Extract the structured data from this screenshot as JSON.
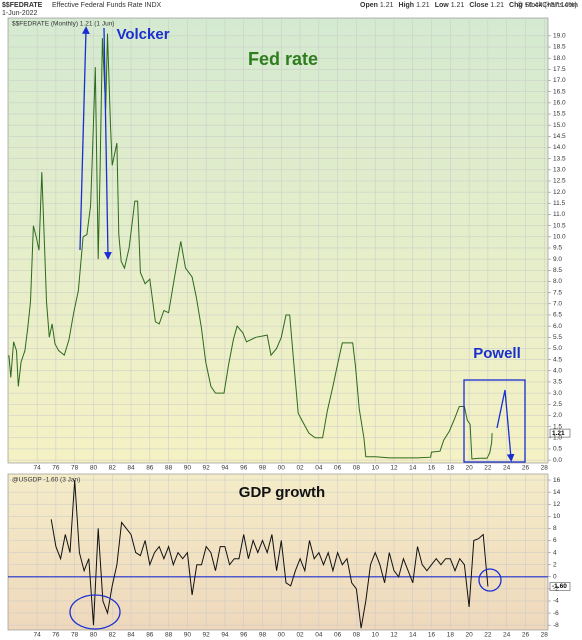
{
  "header": {
    "symbol": "$$FEDRATE",
    "name": "Effective Federal Funds Rate INDX",
    "date": "1-Jun-2022",
    "quote": [
      {
        "label": "Open",
        "value": "1.21"
      },
      {
        "label": "High",
        "value": "1.21"
      },
      {
        "label": "Low",
        "value": "1.21"
      },
      {
        "label": "Close",
        "value": "1.21"
      },
      {
        "label": "Chg",
        "value": "+0.44 (+57.14%)"
      }
    ],
    "credit": "© StockCharts.com"
  },
  "chart_data": [
    {
      "type": "line",
      "label": "$$FEDRATE (Monthly) 1.21 (1 Jun)",
      "title": "Fed rate",
      "annotations": [
        "Volcker",
        "Powell"
      ],
      "color": "#2d6a1f",
      "grid": true,
      "x": [
        1971.0,
        1971.2,
        1971.5,
        1971.8,
        1972.0,
        1972.3,
        1972.7,
        1973.0,
        1973.3,
        1973.6,
        1973.9,
        1974.2,
        1974.5,
        1974.8,
        1975.0,
        1975.3,
        1975.6,
        1975.9,
        1976.3,
        1976.9,
        1977.4,
        1977.9,
        1978.4,
        1978.9,
        1979.3,
        1979.7,
        1979.9,
        1980.2,
        1980.5,
        1980.7,
        1980.95,
        1981.3,
        1981.5,
        1981.8,
        1982.0,
        1982.5,
        1982.7,
        1982.95,
        1983.3,
        1983.8,
        1984.4,
        1984.7,
        1985.0,
        1985.5,
        1986.0,
        1986.6,
        1987.0,
        1987.5,
        1988.0,
        1988.6,
        1989.3,
        1989.8,
        1990.5,
        1990.95,
        1991.5,
        1991.95,
        1992.5,
        1993.0,
        1993.9,
        1994.4,
        1994.9,
        1995.3,
        1995.9,
        1996.3,
        1997.3,
        1998.5,
        1998.9,
        1999.5,
        2000.0,
        2000.5,
        2000.9,
        2001.3,
        2001.8,
        2002.3,
        2002.95,
        2003.6,
        2004.4,
        2004.9,
        2005.5,
        2006.0,
        2006.5,
        2007.6,
        2007.9,
        2008.3,
        2008.8,
        2009.0,
        2010.0,
        2011.5,
        2013.0,
        2014.5,
        2015.9,
        2016.0,
        2016.9,
        2017.3,
        2017.9,
        2018.5,
        2018.95,
        2019.5,
        2019.8,
        2020.1,
        2020.3,
        2021.0,
        2021.9,
        2022.2,
        2022.4,
        2022.45
      ],
      "values": [
        4.7,
        3.7,
        5.3,
        4.9,
        3.3,
        4.4,
        4.9,
        5.9,
        7.1,
        10.5,
        10.0,
        9.4,
        12.9,
        9.5,
        7.1,
        5.5,
        6.1,
        5.2,
        4.9,
        4.7,
        5.4,
        6.6,
        7.6,
        10.0,
        10.1,
        11.4,
        13.8,
        17.6,
        9.0,
        12.8,
        18.9,
        15.7,
        19.1,
        15.1,
        13.2,
        14.2,
        10.1,
        8.9,
        8.6,
        9.5,
        11.6,
        11.6,
        8.4,
        7.9,
        8.1,
        6.2,
        6.1,
        6.7,
        6.6,
        8.1,
        9.8,
        8.6,
        8.2,
        7.3,
        5.9,
        4.4,
        3.3,
        3.0,
        3.0,
        4.3,
        5.4,
        6.0,
        5.7,
        5.3,
        5.5,
        5.6,
        4.7,
        5.0,
        5.5,
        6.5,
        6.5,
        4.5,
        2.1,
        1.7,
        1.2,
        1.0,
        1.0,
        2.2,
        3.3,
        4.3,
        5.25,
        5.25,
        4.2,
        2.3,
        1.0,
        0.15,
        0.15,
        0.1,
        0.1,
        0.1,
        0.13,
        0.36,
        0.4,
        0.9,
        1.3,
        1.9,
        2.4,
        2.4,
        1.8,
        1.6,
        0.05,
        0.08,
        0.08,
        0.33,
        0.8,
        1.21
      ],
      "xlim": [
        1970.9,
        2028.4
      ],
      "xticks": [
        {
          "value": 1974,
          "label": "74"
        },
        {
          "value": 1976,
          "label": "76"
        },
        {
          "value": 1978,
          "label": "78"
        },
        {
          "value": 1980,
          "label": "80"
        },
        {
          "value": 1982,
          "label": "82"
        },
        {
          "value": 1984,
          "label": "84"
        },
        {
          "value": 1986,
          "label": "86"
        },
        {
          "value": 1988,
          "label": "88"
        },
        {
          "value": 1990,
          "label": "90"
        },
        {
          "value": 1992,
          "label": "92"
        },
        {
          "value": 1994,
          "label": "94"
        },
        {
          "value": 1996,
          "label": "96"
        },
        {
          "value": 1998,
          "label": "98"
        },
        {
          "value": 2000,
          "label": "00"
        },
        {
          "value": 2002,
          "label": "02"
        },
        {
          "value": 2004,
          "label": "04"
        },
        {
          "value": 2006,
          "label": "06"
        },
        {
          "value": 2008,
          "label": "08"
        },
        {
          "value": 2010,
          "label": "10"
        },
        {
          "value": 2012,
          "label": "12"
        },
        {
          "value": 2014,
          "label": "14"
        },
        {
          "value": 2016,
          "label": "16"
        },
        {
          "value": 2018,
          "label": "18"
        },
        {
          "value": 2020,
          "label": "20"
        },
        {
          "value": 2022,
          "label": "22"
        },
        {
          "value": 2024,
          "label": "24"
        },
        {
          "value": 2026,
          "label": "26"
        },
        {
          "value": 2028,
          "label": "28"
        }
      ],
      "ylim": [
        -0.13,
        19.8
      ],
      "yticks": [
        {
          "value": 0,
          "label": "0.0"
        },
        0.5,
        {
          "value": 1,
          "label": "1.0"
        },
        1.5,
        {
          "value": 2,
          "label": "2.0"
        },
        2.5,
        {
          "value": 3,
          "label": "3.0"
        },
        3.5,
        {
          "value": 4,
          "label": "4.0"
        },
        4.5,
        {
          "value": 5,
          "label": "5.0"
        },
        5.5,
        {
          "value": 6,
          "label": "6.0"
        },
        6.5,
        {
          "value": 7,
          "label": "7.0"
        },
        7.5,
        {
          "value": 8,
          "label": "8.0"
        },
        8.5,
        {
          "value": 9,
          "label": "9.0"
        },
        9.5,
        {
          "value": 10,
          "label": "10.0"
        },
        10.5,
        {
          "value": 11,
          "label": "11.0"
        },
        11.5,
        {
          "value": 12,
          "label": "12.0"
        },
        12.5,
        {
          "value": 13,
          "label": "13.0"
        },
        13.5,
        {
          "value": 14,
          "label": "14.0"
        },
        14.5,
        {
          "value": 15,
          "label": "15.0"
        },
        15.5,
        {
          "value": 16,
          "label": "16.0"
        },
        16.5,
        {
          "value": 17,
          "label": "17.0"
        },
        17.5,
        {
          "value": 18,
          "label": "18.0"
        },
        18.5,
        {
          "value": 19,
          "label": "19.0"
        }
      ]
    },
    {
      "type": "line",
      "label": "@USGDP -1.60 (3 Jan)",
      "title": "GDP growth",
      "current_label": "-1.60",
      "color": "#111111",
      "grid": true,
      "x": [
        1975.5,
        1976.0,
        1976.5,
        1977.0,
        1977.5,
        1978.0,
        1978.5,
        1979.0,
        1979.5,
        1980.0,
        1980.5,
        1981.0,
        1981.5,
        1982.0,
        1982.5,
        1983.0,
        1983.5,
        1984.0,
        1984.5,
        1985.0,
        1985.5,
        1986.0,
        1986.5,
        1987.0,
        1987.5,
        1988.0,
        1988.5,
        1989.0,
        1989.5,
        1990.0,
        1990.5,
        1991.0,
        1991.5,
        1992.0,
        1992.5,
        1993.0,
        1993.5,
        1994.0,
        1994.5,
        1995.0,
        1995.5,
        1996.0,
        1996.5,
        1997.0,
        1997.5,
        1998.0,
        1998.5,
        1999.0,
        1999.5,
        2000.0,
        2000.5,
        2001.0,
        2001.5,
        2002.0,
        2002.5,
        2003.0,
        2003.5,
        2004.0,
        2004.5,
        2005.0,
        2005.5,
        2006.0,
        2006.5,
        2007.0,
        2007.5,
        2008.0,
        2008.5,
        2009.0,
        2009.5,
        2010.0,
        2010.5,
        2011.0,
        2011.5,
        2012.0,
        2012.5,
        2013.0,
        2013.5,
        2014.0,
        2014.5,
        2015.0,
        2015.5,
        2016.0,
        2016.5,
        2017.0,
        2017.5,
        2018.0,
        2018.5,
        2019.0,
        2019.5,
        2020.0,
        2020.5,
        2021.0,
        2021.5,
        2022.0
      ],
      "values": [
        9.5,
        5,
        3,
        7,
        4,
        16,
        4,
        1,
        3,
        -8,
        8,
        -4,
        -6,
        -1.5,
        2,
        9,
        8,
        7,
        4,
        3.5,
        6,
        2,
        4,
        5,
        3,
        5,
        2,
        4,
        3,
        4,
        -3,
        2,
        2,
        5,
        4,
        1,
        5,
        5,
        2,
        3,
        3,
        7,
        3,
        6,
        4,
        6,
        4,
        7,
        1,
        6,
        -1,
        -1.5,
        1,
        3,
        1,
        6,
        3,
        4,
        2,
        4,
        1,
        4,
        2,
        3,
        -1,
        -2,
        -8.5,
        -4,
        2,
        4,
        2,
        -1,
        4,
        1,
        0,
        3,
        1,
        -1,
        5,
        2,
        1,
        2,
        3,
        2,
        3,
        3,
        1,
        3,
        2,
        -5,
        6,
        6.3,
        7,
        -1.6
      ],
      "xlim": [
        1970.9,
        2028.4
      ],
      "xticks": [
        {
          "value": 1974,
          "label": "74"
        },
        {
          "value": 1976,
          "label": "76"
        },
        {
          "value": 1978,
          "label": "78"
        },
        {
          "value": 1980,
          "label": "80"
        },
        {
          "value": 1982,
          "label": "82"
        },
        {
          "value": 1984,
          "label": "84"
        },
        {
          "value": 1986,
          "label": "86"
        },
        {
          "value": 1988,
          "label": "88"
        },
        {
          "value": 1990,
          "label": "90"
        },
        {
          "value": 1992,
          "label": "92"
        },
        {
          "value": 1994,
          "label": "94"
        },
        {
          "value": 1996,
          "label": "96"
        },
        {
          "value": 1998,
          "label": "98"
        },
        {
          "value": 2000,
          "label": "00"
        },
        {
          "value": 2002,
          "label": "02"
        },
        {
          "value": 2004,
          "label": "04"
        },
        {
          "value": 2006,
          "label": "06"
        },
        {
          "value": 2008,
          "label": "08"
        },
        {
          "value": 2010,
          "label": "10"
        },
        {
          "value": 2012,
          "label": "12"
        },
        {
          "value": 2014,
          "label": "14"
        },
        {
          "value": 2016,
          "label": "16"
        },
        {
          "value": 2018,
          "label": "18"
        },
        {
          "value": 2020,
          "label": "20"
        },
        {
          "value": 2022,
          "label": "22"
        },
        {
          "value": 2024,
          "label": "24"
        },
        {
          "value": 2026,
          "label": "26"
        },
        {
          "value": 2028,
          "label": "28"
        }
      ],
      "ylim": [
        -8.8,
        17
      ],
      "yticks": [
        -8,
        -6,
        -4,
        -2,
        0,
        2,
        4,
        6,
        8,
        10,
        12,
        14,
        16
      ]
    }
  ]
}
